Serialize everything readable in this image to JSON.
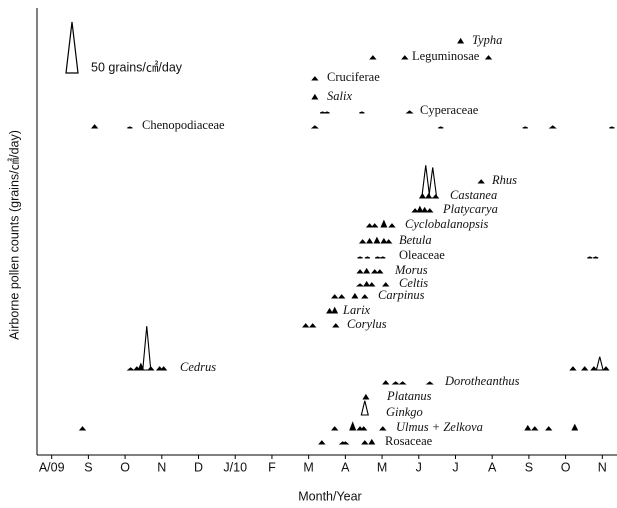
{
  "chart_data": {
    "type": "pollen-calendar",
    "x_label": "Month/Year",
    "y_label": "Airborne pollen counts (grains/㎠/day)",
    "xlim": [
      -0.4,
      15.4
    ],
    "xticks": [
      {
        "value": 0,
        "label": "A/09"
      },
      {
        "value": 1,
        "label": "S"
      },
      {
        "value": 2,
        "label": "O"
      },
      {
        "value": 3,
        "label": "N"
      },
      {
        "value": 4,
        "label": "D"
      },
      {
        "value": 5,
        "label": "J/10"
      },
      {
        "value": 6,
        "label": "F"
      },
      {
        "value": 7,
        "label": "M"
      },
      {
        "value": 8,
        "label": "A"
      },
      {
        "value": 9,
        "label": "M"
      },
      {
        "value": 10,
        "label": "J"
      },
      {
        "value": 11,
        "label": "J"
      },
      {
        "value": 12,
        "label": "A"
      },
      {
        "value": 13,
        "label": "S"
      },
      {
        "value": 14,
        "label": "O"
      },
      {
        "value": 15,
        "label": "N"
      }
    ],
    "scale_bar": {
      "value": 50,
      "label": "50 grains/㎠/day"
    },
    "color": "#000000",
    "series": [
      {
        "name": "Typha",
        "italic": true,
        "x": [
          11.14
        ],
        "values": [
          4
        ]
      },
      {
        "name": "Leguminosae",
        "italic": false,
        "x": [
          8.75,
          9.62,
          11.9
        ],
        "values": [
          3,
          3,
          3
        ]
      },
      {
        "name": "Cruciferae",
        "italic": false,
        "x": [
          7.17
        ],
        "values": [
          3
        ]
      },
      {
        "name": "Salix",
        "italic": true,
        "x": [
          7.17
        ],
        "values": [
          4
        ]
      },
      {
        "name": "Cyperaceae",
        "italic": false,
        "x": [
          7.38,
          7.5,
          8.45,
          9.75
        ],
        "values": [
          1,
          1,
          1,
          2
        ]
      },
      {
        "name": "Chenopodiaceae",
        "italic": false,
        "x": [
          1.17,
          2.13,
          7.17,
          10.6,
          12.9,
          13.65,
          15.26
        ],
        "values": [
          3,
          1,
          2,
          1,
          1,
          2,
          1
        ]
      },
      {
        "name": "Rhus",
        "italic": true,
        "x": [
          11.7
        ],
        "values": [
          3
        ]
      },
      {
        "name": "Castanea",
        "italic": true,
        "x": [
          10.1,
          10.19,
          10.27,
          10.38,
          10.46
        ],
        "values": [
          4,
          32,
          4,
          30,
          3
        ]
      },
      {
        "name": "Platycarya",
        "italic": true,
        "x": [
          9.9,
          10.03,
          10.16,
          10.3
        ],
        "values": [
          3,
          5,
          4,
          3
        ]
      },
      {
        "name": "Cyclobalanopsis",
        "italic": true,
        "x": [
          8.66,
          8.8,
          9.05,
          9.27
        ],
        "values": [
          3,
          3,
          6,
          3
        ]
      },
      {
        "name": "Betula",
        "italic": true,
        "x": [
          8.47,
          8.66,
          8.86,
          9.05,
          9.18
        ],
        "values": [
          3,
          4,
          5,
          4,
          3
        ]
      },
      {
        "name": "Oleaceae",
        "italic": false,
        "x": [
          8.4,
          8.6,
          8.88,
          9.02,
          14.66,
          14.82
        ],
        "values": [
          1,
          1,
          1,
          1,
          1,
          1
        ]
      },
      {
        "name": "Morus",
        "italic": true,
        "x": [
          8.4,
          8.58,
          8.8,
          8.94
        ],
        "values": [
          3,
          4,
          3,
          3
        ]
      },
      {
        "name": "Celtis",
        "italic": true,
        "x": [
          8.4,
          8.58,
          8.72,
          9.1
        ],
        "values": [
          2,
          4,
          3,
          3
        ]
      },
      {
        "name": "Carpinus",
        "italic": true,
        "x": [
          7.71,
          7.9,
          8.26,
          8.53
        ],
        "values": [
          3,
          3,
          4,
          3
        ]
      },
      {
        "name": "Larix",
        "italic": true,
        "x": [
          7.57,
          7.71
        ],
        "values": [
          4,
          5
        ]
      },
      {
        "name": "Corylus",
        "italic": true,
        "x": [
          6.92,
          7.11,
          7.74
        ],
        "values": [
          3,
          3,
          3
        ]
      },
      {
        "name": "Cedrus",
        "italic": true,
        "x": [
          2.15,
          2.32,
          2.43,
          2.59,
          2.7,
          2.94,
          3.05,
          14.2,
          14.52,
          14.77,
          14.93,
          15.1
        ],
        "values": [
          2,
          3,
          6,
          43,
          3,
          3,
          3,
          3,
          3,
          3,
          13,
          3
        ]
      },
      {
        "name": "Dorotheanthus",
        "italic": true,
        "x": [
          9.1,
          9.37,
          9.56,
          10.3
        ],
        "values": [
          3,
          2,
          2,
          2
        ]
      },
      {
        "name": "Platanus",
        "italic": true,
        "x": [
          8.56
        ],
        "values": [
          4
        ]
      },
      {
        "name": "Ginkgo",
        "italic": true,
        "x": [
          8.53
        ],
        "values": [
          14
        ]
      },
      {
        "name": "Ulmus + Zelkova",
        "italic": true,
        "x": [
          0.84,
          7.71,
          8.2,
          8.4,
          8.5,
          9.02,
          12.97,
          13.16,
          13.54,
          14.25
        ],
        "values": [
          3,
          3,
          7,
          3,
          3,
          3,
          4,
          3,
          3,
          5
        ]
      },
      {
        "name": "Rosaceae",
        "italic": false,
        "x": [
          7.36,
          7.93,
          8.0,
          8.53,
          8.72
        ],
        "values": [
          3,
          2,
          2,
          3,
          4
        ]
      }
    ]
  }
}
